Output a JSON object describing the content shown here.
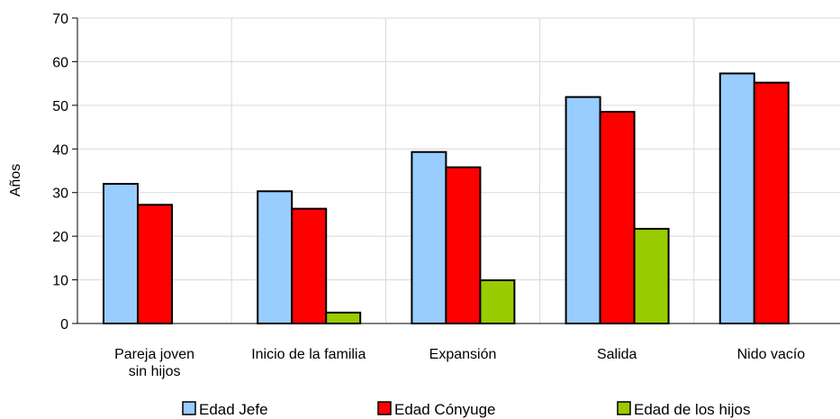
{
  "chart_data": {
    "type": "bar",
    "title": "",
    "xlabel": "",
    "ylabel": "Años",
    "ylim": [
      0,
      70
    ],
    "yticks": [
      0,
      10,
      20,
      30,
      40,
      50,
      60,
      70
    ],
    "grid": "both",
    "legend_position": "bottom",
    "categories": [
      [
        "Pareja joven",
        "sin hijos"
      ],
      [
        "Inicio de la familia"
      ],
      [
        "Expansión"
      ],
      [
        "Salida"
      ],
      [
        "Nido vacío"
      ]
    ],
    "series": [
      {
        "name": "Edad Jefe",
        "color": "#99ccff",
        "values": [
          32,
          30.3,
          39.3,
          51.9,
          57.3
        ]
      },
      {
        "name": "Edad Cónyuge",
        "color": "#ff0000",
        "values": [
          27.2,
          26.3,
          35.8,
          48.5,
          55.2
        ]
      },
      {
        "name": "Edad de los hijos",
        "color": "#99cc00",
        "values": [
          null,
          2.5,
          9.9,
          21.7,
          null
        ]
      }
    ]
  }
}
